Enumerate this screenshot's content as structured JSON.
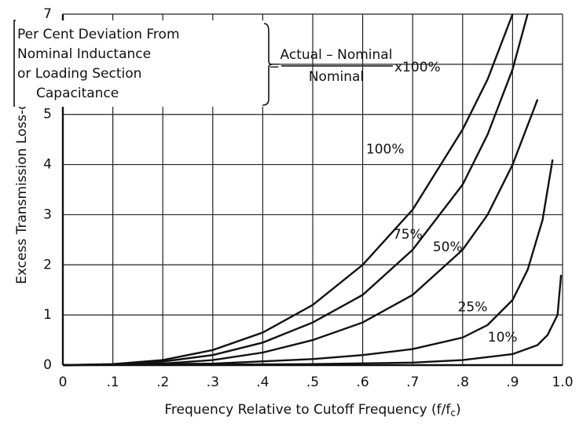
{
  "chart_data": {
    "type": "line",
    "y_label": "Excess Transmission Loss-db",
    "x_label": {
      "text": "Frequency Relative to Cutoff Frequency (f/f",
      "subscript": "c",
      "end": ")"
    },
    "annotation": {
      "lines": [
        "Per Cent Deviation From",
        "Nominal Inductance",
        "or Loading Section",
        "Capacitance"
      ],
      "equals": "=",
      "numerator": "Actual – Nominal",
      "denominator": "Nominal",
      "suffix": "x100%"
    },
    "xlim": [
      0,
      1
    ],
    "ylim": [
      0,
      7
    ],
    "xticks": [
      0,
      {
        "value": 0.1,
        "label": ".1"
      },
      {
        "value": 0.2,
        "label": ".2"
      },
      {
        "value": 0.3,
        "label": ".3"
      },
      {
        "value": 0.4,
        "label": ".4"
      },
      {
        "value": 0.5,
        "label": ".5"
      },
      {
        "value": 0.6,
        "label": ".6"
      },
      {
        "value": 0.7,
        "label": ".7"
      },
      {
        "value": 0.8,
        "label": ".8"
      },
      {
        "value": 0.9,
        "label": ".9"
      },
      {
        "value": 1,
        "label": "1.0"
      }
    ],
    "yticks": [
      0,
      1,
      2,
      3,
      4,
      5,
      6,
      7
    ],
    "grid": true,
    "series": [
      {
        "name": "100%",
        "color": "#111111",
        "x": [
          0,
          0.1,
          0.2,
          0.3,
          0.4,
          0.5,
          0.6,
          0.7,
          0.8,
          0.85,
          0.9
        ],
        "values": [
          0,
          0.02,
          0.1,
          0.3,
          0.65,
          1.2,
          2.0,
          3.1,
          4.7,
          5.7,
          7
        ]
      },
      {
        "name": "75%",
        "color": "#111111",
        "x": [
          0,
          0.1,
          0.2,
          0.3,
          0.4,
          0.5,
          0.6,
          0.7,
          0.8,
          0.85,
          0.9,
          0.93
        ],
        "values": [
          0,
          0.01,
          0.07,
          0.2,
          0.45,
          0.85,
          1.4,
          2.3,
          3.6,
          4.6,
          5.9,
          7
        ]
      },
      {
        "name": "50%",
        "color": "#111111",
        "x": [
          0,
          0.2,
          0.3,
          0.4,
          0.5,
          0.6,
          0.7,
          0.8,
          0.85,
          0.9,
          0.95
        ],
        "values": [
          0,
          0.03,
          0.1,
          0.25,
          0.5,
          0.85,
          1.4,
          2.3,
          3.0,
          4.0,
          5.3
        ]
      },
      {
        "name": "25%",
        "color": "#111111",
        "x": [
          0,
          0.3,
          0.5,
          0.6,
          0.7,
          0.8,
          0.85,
          0.9,
          0.93,
          0.96,
          0.98
        ],
        "values": [
          0,
          0.03,
          0.12,
          0.2,
          0.32,
          0.55,
          0.8,
          1.3,
          1.9,
          2.9,
          4.1
        ]
      },
      {
        "name": "10%",
        "color": "#111111",
        "x": [
          0,
          0.5,
          0.7,
          0.8,
          0.9,
          0.95,
          0.97,
          0.99,
          0.997
        ],
        "values": [
          0,
          0.02,
          0.05,
          0.1,
          0.22,
          0.4,
          0.6,
          1.0,
          1.8
        ]
      }
    ]
  }
}
